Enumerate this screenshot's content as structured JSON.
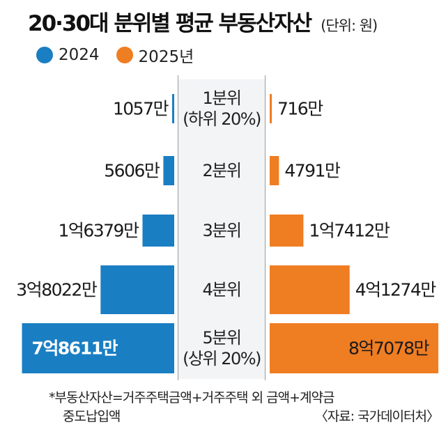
{
  "header": {
    "title": "20·30대 분위별 평균 부동산자산",
    "unit": "(단위: 원)"
  },
  "colors": {
    "series_2024": "#1a7ec3",
    "series_2025": "#ef7d22",
    "center_band": "#f3f4f6"
  },
  "chart_data": {
    "type": "bar",
    "orientation": "horizontal-diverging",
    "categories": [
      "1분위\n(하위 20%)",
      "2분위",
      "3분위",
      "4분위",
      "5분위\n(상위 20%)"
    ],
    "unit_label": "만원",
    "series": [
      {
        "name": "2024",
        "values": [
          1057,
          5606,
          16379,
          38022,
          78611
        ],
        "labels": [
          "1057만",
          "5606만",
          "1억6379만",
          "3억8022만",
          "7억8611만"
        ]
      },
      {
        "name": "2025년",
        "values": [
          716,
          4791,
          17412,
          41274,
          87078
        ],
        "labels": [
          "716만",
          "4791만",
          "1억7412만",
          "4억1274만",
          "8억7078만"
        ]
      }
    ],
    "legend_position": "top-left"
  },
  "footnote": {
    "definition": "*부동산자산=거주주택금액+거주주택 외 금액+계약금",
    "definition_cont": "중도납입액",
    "source": "〈자료: 국가데이터처〉"
  }
}
